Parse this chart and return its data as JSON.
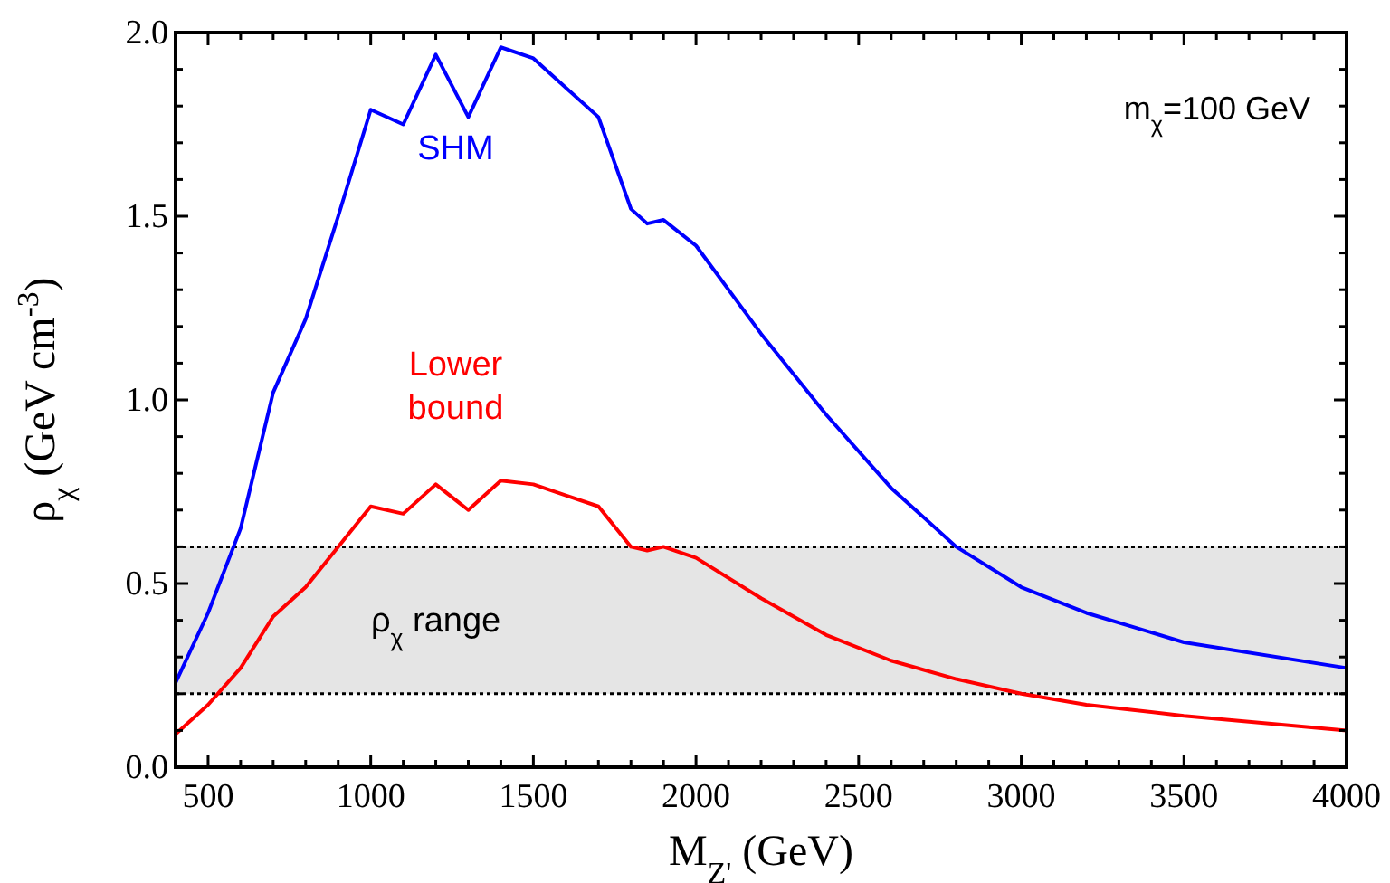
{
  "chart_data": {
    "type": "line",
    "xlabel": "M$_{Z'}$ (GeV)",
    "ylabel": "ρ$_{χ}$ (GeV cm$^{-3}$)",
    "xlim": [
      400,
      4000
    ],
    "ylim": [
      0,
      2
    ],
    "xticks": [
      {
        "value": 400,
        "label": null
      },
      500,
      {
        "value": 600,
        "label": null
      },
      {
        "value": 700,
        "label": null
      },
      {
        "value": 800,
        "label": null
      },
      {
        "value": 900,
        "label": null
      },
      1000,
      {
        "value": 1100,
        "label": null
      },
      {
        "value": 1200,
        "label": null
      },
      {
        "value": 1300,
        "label": null
      },
      {
        "value": 1400,
        "label": null
      },
      1500,
      {
        "value": 1600,
        "label": null
      },
      {
        "value": 1700,
        "label": null
      },
      {
        "value": 1800,
        "label": null
      },
      {
        "value": 1900,
        "label": null
      },
      2000,
      {
        "value": 2100,
        "label": null
      },
      {
        "value": 2200,
        "label": null
      },
      {
        "value": 2300,
        "label": null
      },
      {
        "value": 2400,
        "label": null
      },
      2500,
      {
        "value": 2600,
        "label": null
      },
      {
        "value": 2700,
        "label": null
      },
      {
        "value": 2800,
        "label": null
      },
      {
        "value": 2900,
        "label": null
      },
      3000,
      {
        "value": 3100,
        "label": null
      },
      {
        "value": 3200,
        "label": null
      },
      {
        "value": 3300,
        "label": null
      },
      {
        "value": 3400,
        "label": null
      },
      3500,
      {
        "value": 3600,
        "label": null
      },
      {
        "value": 3700,
        "label": null
      },
      {
        "value": 3800,
        "label": null
      },
      {
        "value": 3900,
        "label": null
      },
      4000
    ],
    "yticks": [
      {
        "value": 0,
        "label": "0.0"
      },
      {
        "value": 0.1,
        "label": null
      },
      {
        "value": 0.2,
        "label": null
      },
      {
        "value": 0.3,
        "label": null
      },
      {
        "value": 0.4,
        "label": null
      },
      {
        "value": 0.5,
        "label": "0.5"
      },
      {
        "value": 0.6,
        "label": null
      },
      {
        "value": 0.7,
        "label": null
      },
      {
        "value": 0.8,
        "label": null
      },
      {
        "value": 0.9,
        "label": null
      },
      {
        "value": 1,
        "label": "1.0"
      },
      {
        "value": 1.1,
        "label": null
      },
      {
        "value": 1.2,
        "label": null
      },
      {
        "value": 1.3,
        "label": null
      },
      {
        "value": 1.4,
        "label": null
      },
      {
        "value": 1.5,
        "label": "1.5"
      },
      {
        "value": 1.6,
        "label": null
      },
      {
        "value": 1.7,
        "label": null
      },
      {
        "value": 1.8,
        "label": null
      },
      {
        "value": 1.9,
        "label": null
      },
      {
        "value": 2,
        "label": "2.0"
      }
    ],
    "x": [
      400,
      500,
      600,
      700,
      800,
      900,
      1000,
      1100,
      1200,
      1300,
      1400,
      1500,
      1600,
      1700,
      1800,
      1850,
      1900,
      2000,
      2200,
      2400,
      2600,
      2800,
      3000,
      3200,
      3500,
      4000
    ],
    "series": [
      {
        "name": "SHM",
        "color": "#0000ff",
        "values": [
          0.23,
          0.42,
          0.65,
          1.02,
          1.22,
          1.5,
          1.79,
          1.75,
          1.94,
          1.77,
          1.96,
          1.93,
          1.85,
          1.77,
          1.52,
          1.48,
          1.49,
          1.42,
          1.18,
          0.96,
          0.76,
          0.6,
          0.49,
          0.42,
          0.34,
          0.27
        ]
      },
      {
        "name": "Lower bound",
        "color": "#ff0000",
        "values": [
          0.09,
          0.17,
          0.27,
          0.41,
          0.49,
          0.6,
          0.71,
          0.69,
          0.77,
          0.7,
          0.78,
          0.77,
          0.74,
          0.71,
          0.6,
          0.59,
          0.6,
          0.57,
          0.46,
          0.36,
          0.29,
          0.24,
          0.2,
          0.17,
          0.14,
          0.1
        ]
      }
    ],
    "bands": [
      {
        "axis": "y",
        "from": 0.2,
        "to": 0.6,
        "label": "ρ$_{χ}$ range",
        "color": "#e5e5e5"
      }
    ],
    "ref_lines": [
      {
        "axis": "y",
        "value": 0.2,
        "line_style": "dotted",
        "color": "#000000"
      },
      {
        "axis": "y",
        "value": 0.6,
        "line_style": "dotted",
        "color": "#000000"
      }
    ],
    "annotations": [
      "m$_{χ}$=100 GeV"
    ],
    "marker": "none",
    "line_style": "solid"
  }
}
